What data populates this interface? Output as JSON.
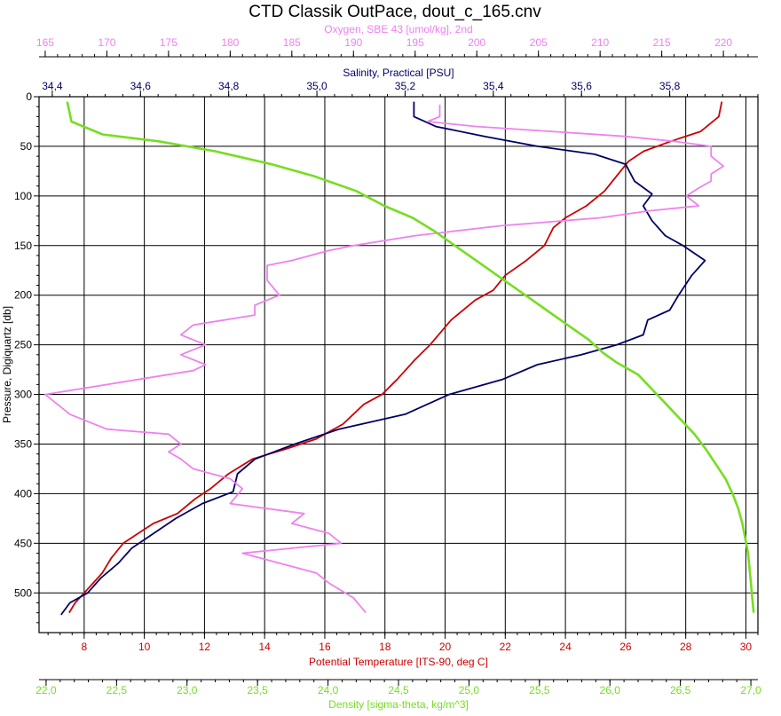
{
  "chart_data": {
    "type": "line",
    "title": "CTD Classik OutPace, dout_c_165.cnv",
    "y_axis": {
      "label": "Pressure, Digiquartz [db]",
      "range": [
        0,
        540
      ],
      "inverted": true,
      "ticks": [
        0,
        50,
        100,
        150,
        200,
        250,
        300,
        350,
        400,
        450,
        500
      ],
      "tick_labels": [
        "0",
        "50",
        "100",
        "150",
        "200",
        "250",
        "300",
        "350",
        "400",
        "450",
        "500"
      ]
    },
    "x_axes": [
      {
        "id": "oxygen",
        "position": "top-outer",
        "label": "Oxygen, SBE 43 [umol/kg], 2nd",
        "color": "#ee82ee",
        "range": [
          164.5,
          222.8
        ],
        "ticks": [
          165,
          170,
          175,
          180,
          185,
          190,
          195,
          200,
          205,
          210,
          215,
          220
        ],
        "tick_labels": [
          "165",
          "170",
          "175",
          "180",
          "185",
          "190",
          "195",
          "200",
          "205",
          "210",
          "215",
          "220"
        ]
      },
      {
        "id": "salinity",
        "position": "top-inner",
        "label": "Salinity, Practical [PSU]",
        "color": "#000066",
        "range": [
          34.37,
          36.0
        ],
        "ticks": [
          34.4,
          34.6,
          34.8,
          35.0,
          35.2,
          35.4,
          35.6,
          35.8
        ],
        "tick_labels": [
          "34,4",
          "34,6",
          "34,8",
          "35,0",
          "35,2",
          "35,4",
          "35,6",
          "35,8"
        ]
      },
      {
        "id": "temperature",
        "position": "bottom-inner",
        "label": "Potential Temperature [ITS-90, deg C]",
        "color": "#cc0000",
        "range": [
          6.5,
          30.4
        ],
        "ticks": [
          8,
          10,
          12,
          14,
          16,
          18,
          20,
          22,
          24,
          26,
          28,
          30
        ],
        "tick_labels": [
          "8",
          "10",
          "12",
          "14",
          "16",
          "18",
          "20",
          "22",
          "24",
          "26",
          "28",
          "30"
        ]
      },
      {
        "id": "density",
        "position": "bottom-outer",
        "label": "Density [sigma-theta, kg/m^3]",
        "color": "#77dd22",
        "range": [
          21.95,
          27.05
        ],
        "ticks": [
          22.0,
          22.5,
          23.0,
          23.5,
          24.0,
          24.5,
          25.0,
          25.5,
          26.0,
          26.5,
          27.0
        ],
        "tick_labels": [
          "22,0",
          "22,5",
          "23,0",
          "23,5",
          "24,0",
          "24,5",
          "25,0",
          "25,5",
          "26,0",
          "26,5",
          "27,0"
        ]
      }
    ],
    "grid": true,
    "series": [
      {
        "axis": "temperature",
        "color": "#cc0000",
        "points": [
          [
            29.2,
            5
          ],
          [
            29.1,
            20
          ],
          [
            28.5,
            35
          ],
          [
            27.5,
            45
          ],
          [
            26.6,
            55
          ],
          [
            26.1,
            65
          ],
          [
            25.7,
            80
          ],
          [
            25.3,
            95
          ],
          [
            24.7,
            110
          ],
          [
            24.0,
            122
          ],
          [
            23.6,
            132
          ],
          [
            23.3,
            150
          ],
          [
            22.7,
            165
          ],
          [
            22.0,
            180
          ],
          [
            21.6,
            195
          ],
          [
            21.0,
            205
          ],
          [
            20.2,
            225
          ],
          [
            19.5,
            250
          ],
          [
            19.0,
            265
          ],
          [
            18.4,
            285
          ],
          [
            17.9,
            300
          ],
          [
            17.3,
            310
          ],
          [
            16.6,
            330
          ],
          [
            15.7,
            345
          ],
          [
            14.7,
            355
          ],
          [
            13.6,
            365
          ],
          [
            12.8,
            380
          ],
          [
            12.2,
            395
          ],
          [
            11.7,
            405
          ],
          [
            11.1,
            420
          ],
          [
            10.3,
            430
          ],
          [
            9.8,
            440
          ],
          [
            9.3,
            450
          ],
          [
            8.9,
            465
          ],
          [
            8.6,
            480
          ],
          [
            8.3,
            490
          ],
          [
            8.0,
            500
          ],
          [
            7.7,
            510
          ],
          [
            7.5,
            520
          ]
        ]
      },
      {
        "axis": "salinity",
        "color": "#000066",
        "points": [
          [
            35.22,
            5
          ],
          [
            35.22,
            20
          ],
          [
            35.27,
            30
          ],
          [
            35.38,
            40
          ],
          [
            35.5,
            50
          ],
          [
            35.63,
            58
          ],
          [
            35.7,
            68
          ],
          [
            35.72,
            85
          ],
          [
            35.76,
            98
          ],
          [
            35.74,
            110
          ],
          [
            35.76,
            125
          ],
          [
            35.79,
            140
          ],
          [
            35.83,
            150
          ],
          [
            35.88,
            165
          ],
          [
            35.85,
            180
          ],
          [
            35.82,
            200
          ],
          [
            35.8,
            215
          ],
          [
            35.75,
            225
          ],
          [
            35.74,
            240
          ],
          [
            35.68,
            250
          ],
          [
            35.6,
            260
          ],
          [
            35.5,
            270
          ],
          [
            35.42,
            285
          ],
          [
            35.3,
            300
          ],
          [
            35.2,
            320
          ],
          [
            35.05,
            335
          ],
          [
            34.95,
            350
          ],
          [
            34.86,
            365
          ],
          [
            34.82,
            380
          ],
          [
            34.81,
            398
          ],
          [
            34.74,
            410
          ],
          [
            34.68,
            425
          ],
          [
            34.63,
            440
          ],
          [
            34.58,
            455
          ],
          [
            34.55,
            470
          ],
          [
            34.51,
            485
          ],
          [
            34.48,
            500
          ],
          [
            34.44,
            510
          ],
          [
            34.42,
            522
          ]
        ]
      },
      {
        "axis": "oxygen",
        "color": "#ee82ee",
        "points": [
          [
            197,
            8
          ],
          [
            197,
            20
          ],
          [
            196,
            25
          ],
          [
            200,
            30
          ],
          [
            206,
            35
          ],
          [
            212,
            40
          ],
          [
            216,
            45
          ],
          [
            219,
            50
          ],
          [
            219,
            60
          ],
          [
            220,
            70
          ],
          [
            219,
            78
          ],
          [
            219,
            85
          ],
          [
            218,
            92
          ],
          [
            217,
            100
          ],
          [
            218,
            110
          ],
          [
            214,
            115
          ],
          [
            210,
            122
          ],
          [
            202,
            130
          ],
          [
            195,
            140
          ],
          [
            190,
            150
          ],
          [
            188,
            155
          ],
          [
            185,
            165
          ],
          [
            183,
            170
          ],
          [
            183,
            185
          ],
          [
            184,
            200
          ],
          [
            182,
            210
          ],
          [
            182,
            220
          ],
          [
            177,
            230
          ],
          [
            176,
            240
          ],
          [
            178,
            250
          ],
          [
            176,
            260
          ],
          [
            178,
            270
          ],
          [
            177,
            276
          ],
          [
            165,
            300
          ],
          [
            167,
            320
          ],
          [
            170,
            335
          ],
          [
            175,
            340
          ],
          [
            176,
            350
          ],
          [
            175,
            358
          ],
          [
            176,
            365
          ],
          [
            177,
            375
          ],
          [
            180,
            385
          ],
          [
            181,
            395
          ],
          [
            180,
            410
          ],
          [
            186,
            420
          ],
          [
            185,
            430
          ],
          [
            188,
            440
          ],
          [
            189,
            450
          ],
          [
            181,
            460
          ],
          [
            184,
            470
          ],
          [
            187,
            480
          ],
          [
            188,
            490
          ],
          [
            190,
            505
          ],
          [
            191,
            520
          ]
        ]
      },
      {
        "axis": "density",
        "color": "#77dd22",
        "points": [
          [
            22.15,
            5
          ],
          [
            22.18,
            25
          ],
          [
            22.4,
            38
          ],
          [
            22.8,
            45
          ],
          [
            23.2,
            55
          ],
          [
            23.6,
            68
          ],
          [
            23.9,
            80
          ],
          [
            24.2,
            95
          ],
          [
            24.4,
            110
          ],
          [
            24.6,
            122
          ],
          [
            24.75,
            135
          ],
          [
            24.9,
            150
          ],
          [
            25.05,
            165
          ],
          [
            25.2,
            180
          ],
          [
            25.4,
            200
          ],
          [
            25.55,
            215
          ],
          [
            25.7,
            230
          ],
          [
            25.85,
            245
          ],
          [
            25.95,
            258
          ],
          [
            26.05,
            268
          ],
          [
            26.2,
            280
          ],
          [
            26.3,
            295
          ],
          [
            26.4,
            310
          ],
          [
            26.5,
            325
          ],
          [
            26.6,
            340
          ],
          [
            26.68,
            355
          ],
          [
            26.75,
            370
          ],
          [
            26.82,
            385
          ],
          [
            26.87,
            400
          ],
          [
            26.91,
            415
          ],
          [
            26.94,
            430
          ],
          [
            26.96,
            445
          ],
          [
            26.98,
            460
          ],
          [
            26.99,
            475
          ],
          [
            27.0,
            490
          ],
          [
            27.01,
            505
          ],
          [
            27.02,
            520
          ]
        ]
      }
    ]
  }
}
